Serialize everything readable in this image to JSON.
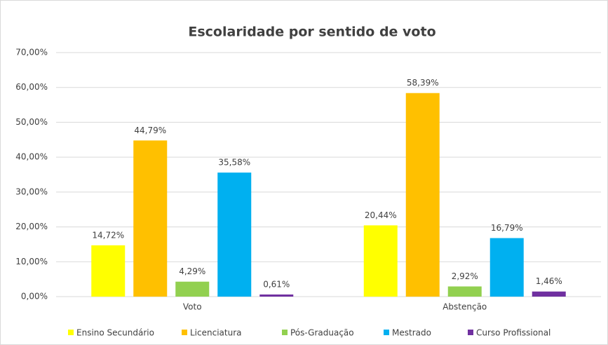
{
  "chart_data": {
    "type": "bar",
    "title": "Escolaridade por sentido de voto",
    "categories": [
      "Voto",
      "Abstenção"
    ],
    "series": [
      {
        "name": "Ensino Secundário",
        "color": "#ffff00",
        "values": [
          14.72,
          20.44
        ],
        "value_labels": [
          "14,72%",
          "20,44%"
        ]
      },
      {
        "name": "Licenciatura",
        "color": "#ffc000",
        "values": [
          44.79,
          58.39
        ],
        "value_labels": [
          "44,79%",
          "58,39%"
        ]
      },
      {
        "name": "Pós-Graduação",
        "color": "#92d050",
        "values": [
          4.29,
          2.92
        ],
        "value_labels": [
          "4,29%",
          "2,92%"
        ]
      },
      {
        "name": "Mestrado",
        "color": "#00b0f0",
        "values": [
          35.58,
          16.79
        ],
        "value_labels": [
          "35,58%",
          "16,79%"
        ]
      },
      {
        "name": "Curso Profissional",
        "color": "#7030a0",
        "values": [
          0.61,
          1.46
        ],
        "value_labels": [
          "0,61%",
          "1,46%"
        ]
      }
    ],
    "ylim": [
      0,
      70
    ],
    "yticks": [
      {
        "value": 0,
        "label": "0,00%"
      },
      {
        "value": 10,
        "label": "10,00%"
      },
      {
        "value": 20,
        "label": "20,00%"
      },
      {
        "value": 30,
        "label": "30,00%"
      },
      {
        "value": 40,
        "label": "40,00%"
      },
      {
        "value": 50,
        "label": "50,00%"
      },
      {
        "value": 60,
        "label": "60,00%"
      },
      {
        "value": 70,
        "label": "70,00%"
      }
    ],
    "grid": true,
    "legend": "bottom"
  }
}
